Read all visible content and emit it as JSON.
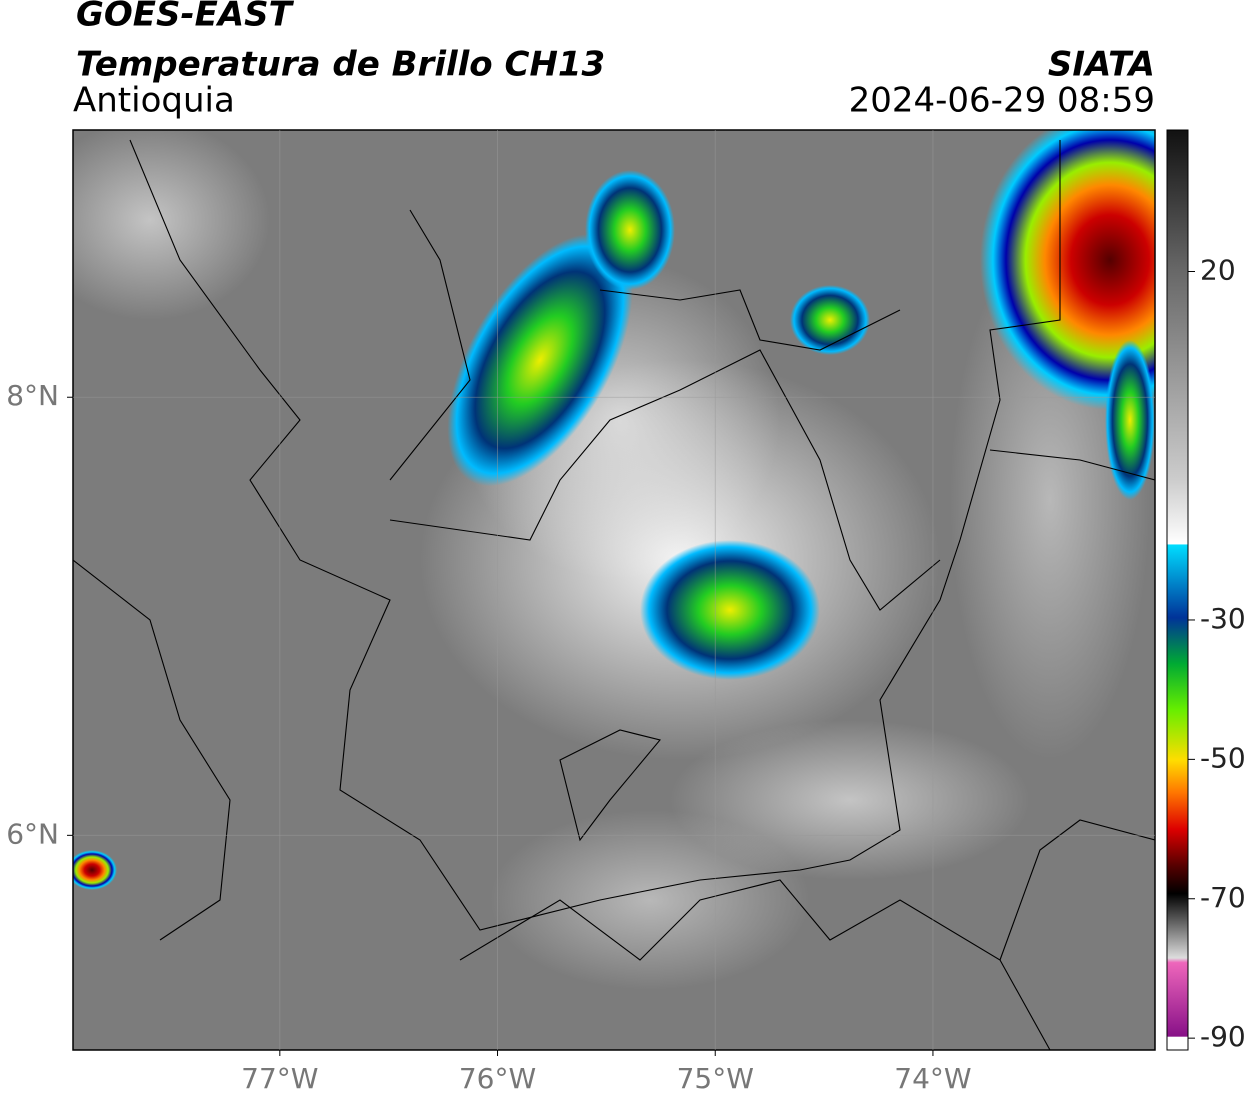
{
  "header": {
    "title": "GOES-EAST",
    "subtitle": "Temperatura de Brillo CH13",
    "region": "Antioquia",
    "source": "SIATA",
    "datetime": "2024-06-29 08:59"
  },
  "map": {
    "lon_range": [
      -77.95,
      -72.98
    ],
    "lat_range": [
      5.02,
      9.22
    ],
    "lon_ticks": [
      {
        "value": -77,
        "label": "77°W"
      },
      {
        "value": -76,
        "label": "76°W"
      },
      {
        "value": -75,
        "label": "75°W"
      },
      {
        "value": -74,
        "label": "74°W"
      }
    ],
    "lat_ticks": [
      {
        "value": 8,
        "label": "8°N"
      },
      {
        "value": 6,
        "label": "6°N"
      }
    ]
  },
  "colorbar": {
    "lim": [
      -91.7,
      40.3
    ],
    "ticks": [
      20,
      -30,
      -50,
      -70,
      -90
    ]
  }
}
